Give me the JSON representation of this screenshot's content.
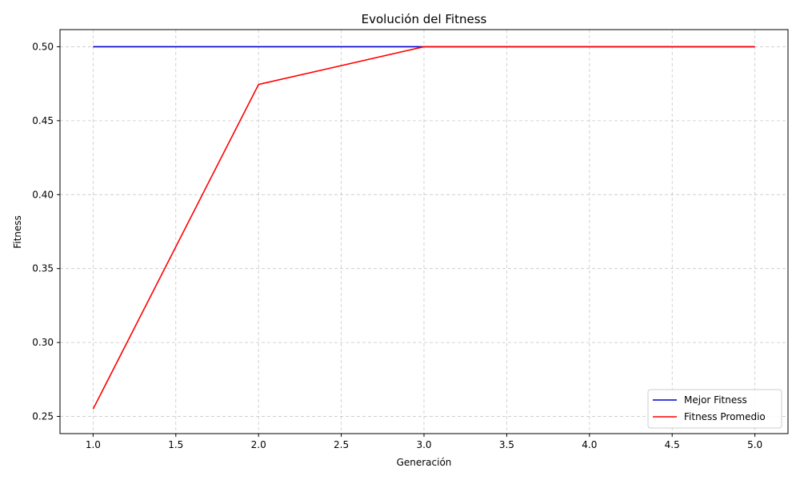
{
  "chart_data": {
    "type": "line",
    "title": "Evolución del Fitness",
    "xlabel": "Generación",
    "ylabel": "Fitness",
    "x": [
      1,
      2,
      3,
      4,
      5
    ],
    "xlim": [
      0.8,
      5.2
    ],
    "ylim": [
      0.2384,
      0.5116
    ],
    "xticks": [
      1.0,
      1.5,
      2.0,
      2.5,
      3.0,
      3.5,
      4.0,
      4.5,
      5.0
    ],
    "xtick_labels": [
      "1.0",
      "1.5",
      "2.0",
      "2.5",
      "3.0",
      "3.5",
      "4.0",
      "4.5",
      "5.0"
    ],
    "yticks": [
      0.25,
      0.3,
      0.35,
      0.4,
      0.45,
      0.5
    ],
    "ytick_labels": [
      "0.25",
      "0.30",
      "0.35",
      "0.40",
      "0.45",
      "0.50"
    ],
    "grid": true,
    "legend_position": "lower-right",
    "series": [
      {
        "name": "Mejor Fitness",
        "color": "#0000cc",
        "values": [
          0.5,
          0.5,
          0.5,
          0.5,
          0.5
        ]
      },
      {
        "name": "Fitness Promedio",
        "color": "#ff0000",
        "values": [
          0.255,
          0.4745,
          0.5,
          0.5,
          0.5
        ]
      }
    ]
  }
}
